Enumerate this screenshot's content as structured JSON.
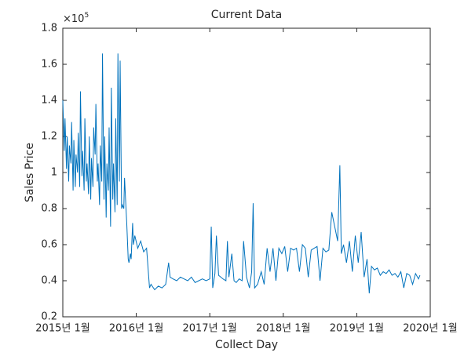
{
  "chart_data": {
    "type": "line",
    "title": "Current Data",
    "xlabel": "Collect Day",
    "ylabel": "Sales Price",
    "y_multiplier": {
      "base": "×10",
      "exponent": "5"
    },
    "color": "#0072bd",
    "xlim": [
      2015,
      2020
    ],
    "ylim": [
      0.2,
      1.8
    ],
    "xticks": [
      {
        "value": 2015,
        "label": "2015년 1월"
      },
      {
        "value": 2016,
        "label": "2016년 1월"
      },
      {
        "value": 2017,
        "label": "2017년 1월"
      },
      {
        "value": 2018,
        "label": "2018년 1월"
      },
      {
        "value": 2019,
        "label": "2019년 1월"
      },
      {
        "value": 2020,
        "label": "2020년 1월"
      }
    ],
    "yticks": [
      0.2,
      0.4,
      0.6,
      0.8,
      1,
      1.2,
      1.4,
      1.6,
      1.8
    ],
    "x": [
      2015.0,
      2015.02,
      2015.03,
      2015.05,
      2015.06,
      2015.08,
      2015.09,
      2015.11,
      2015.12,
      2015.14,
      2015.15,
      2015.17,
      2015.18,
      2015.2,
      2015.21,
      2015.23,
      2015.24,
      2015.26,
      2015.27,
      2015.29,
      2015.3,
      2015.32,
      2015.33,
      2015.35,
      2015.36,
      2015.38,
      2015.39,
      2015.41,
      2015.42,
      2015.44,
      2015.45,
      2015.47,
      2015.48,
      2015.5,
      2015.51,
      2015.53,
      2015.54,
      2015.56,
      2015.57,
      2015.59,
      2015.6,
      2015.62,
      2015.63,
      2015.65,
      2015.66,
      2015.68,
      2015.69,
      2015.71,
      2015.72,
      2015.74,
      2015.75,
      2015.77,
      2015.78,
      2015.8,
      2015.81,
      2015.83,
      2015.84,
      2015.86,
      2015.87,
      2015.89,
      2015.9,
      2015.92,
      2015.93,
      2015.95,
      2015.96,
      2015.98,
      2016.02,
      2016.06,
      2016.1,
      2016.14,
      2016.18,
      2016.2,
      2016.25,
      2016.3,
      2016.35,
      2016.4,
      2016.44,
      2016.46,
      2016.5,
      2016.55,
      2016.6,
      2016.65,
      2016.7,
      2016.75,
      2016.8,
      2016.85,
      2016.9,
      2016.95,
      2017.0,
      2017.02,
      2017.04,
      2017.07,
      2017.09,
      2017.12,
      2017.15,
      2017.18,
      2017.22,
      2017.24,
      2017.26,
      2017.3,
      2017.33,
      2017.36,
      2017.4,
      2017.44,
      2017.46,
      2017.5,
      2017.54,
      2017.57,
      2017.59,
      2017.61,
      2017.65,
      2017.7,
      2017.74,
      2017.78,
      2017.82,
      2017.86,
      2017.9,
      2017.94,
      2017.98,
      2018.02,
      2018.06,
      2018.1,
      2018.14,
      2018.18,
      2018.22,
      2018.26,
      2018.3,
      2018.34,
      2018.38,
      2018.42,
      2018.46,
      2018.5,
      2018.54,
      2018.58,
      2018.62,
      2018.66,
      2018.7,
      2018.74,
      2018.77,
      2018.79,
      2018.82,
      2018.86,
      2018.9,
      2018.94,
      2018.98,
      2019.02,
      2019.06,
      2019.1,
      2019.14,
      2019.17,
      2019.2,
      2019.24,
      2019.28,
      2019.32,
      2019.36,
      2019.4,
      2019.44,
      2019.48,
      2019.52,
      2019.56,
      2019.6,
      2019.64,
      2019.68,
      2019.72,
      2019.76,
      2019.8,
      2019.84,
      2019.86
    ],
    "values": [
      1.4,
      1.12,
      1.3,
      1.02,
      1.2,
      0.95,
      1.15,
      1.05,
      1.28,
      0.9,
      1.18,
      0.92,
      1.1,
      1.0,
      1.22,
      0.92,
      1.45,
      0.98,
      1.12,
      0.9,
      1.3,
      0.95,
      1.05,
      0.88,
      1.2,
      0.85,
      1.08,
      0.92,
      1.25,
      1.1,
      1.38,
      0.95,
      1.05,
      0.82,
      1.15,
      0.95,
      1.66,
      0.85,
      1.2,
      0.75,
      1.05,
      0.9,
      1.25,
      0.7,
      1.47,
      0.85,
      1.05,
      0.78,
      1.3,
      0.82,
      1.66,
      0.95,
      1.62,
      0.8,
      0.82,
      0.8,
      0.97,
      0.8,
      0.72,
      0.52,
      0.5,
      0.55,
      0.52,
      0.72,
      0.6,
      0.65,
      0.58,
      0.62,
      0.56,
      0.58,
      0.36,
      0.38,
      0.35,
      0.37,
      0.36,
      0.38,
      0.5,
      0.42,
      0.41,
      0.4,
      0.42,
      0.41,
      0.4,
      0.42,
      0.39,
      0.4,
      0.41,
      0.4,
      0.41,
      0.7,
      0.36,
      0.44,
      0.65,
      0.43,
      0.42,
      0.41,
      0.4,
      0.62,
      0.42,
      0.55,
      0.4,
      0.39,
      0.41,
      0.4,
      0.62,
      0.42,
      0.36,
      0.45,
      0.83,
      0.36,
      0.38,
      0.45,
      0.38,
      0.58,
      0.45,
      0.58,
      0.4,
      0.58,
      0.55,
      0.59,
      0.45,
      0.58,
      0.57,
      0.58,
      0.45,
      0.6,
      0.58,
      0.42,
      0.57,
      0.58,
      0.59,
      0.4,
      0.58,
      0.56,
      0.57,
      0.78,
      0.7,
      0.62,
      1.04,
      0.55,
      0.6,
      0.5,
      0.62,
      0.45,
      0.65,
      0.5,
      0.67,
      0.42,
      0.52,
      0.33,
      0.48,
      0.46,
      0.47,
      0.43,
      0.45,
      0.44,
      0.46,
      0.43,
      0.44,
      0.42,
      0.45,
      0.36,
      0.44,
      0.43,
      0.38,
      0.44,
      0.41,
      0.43
    ]
  }
}
